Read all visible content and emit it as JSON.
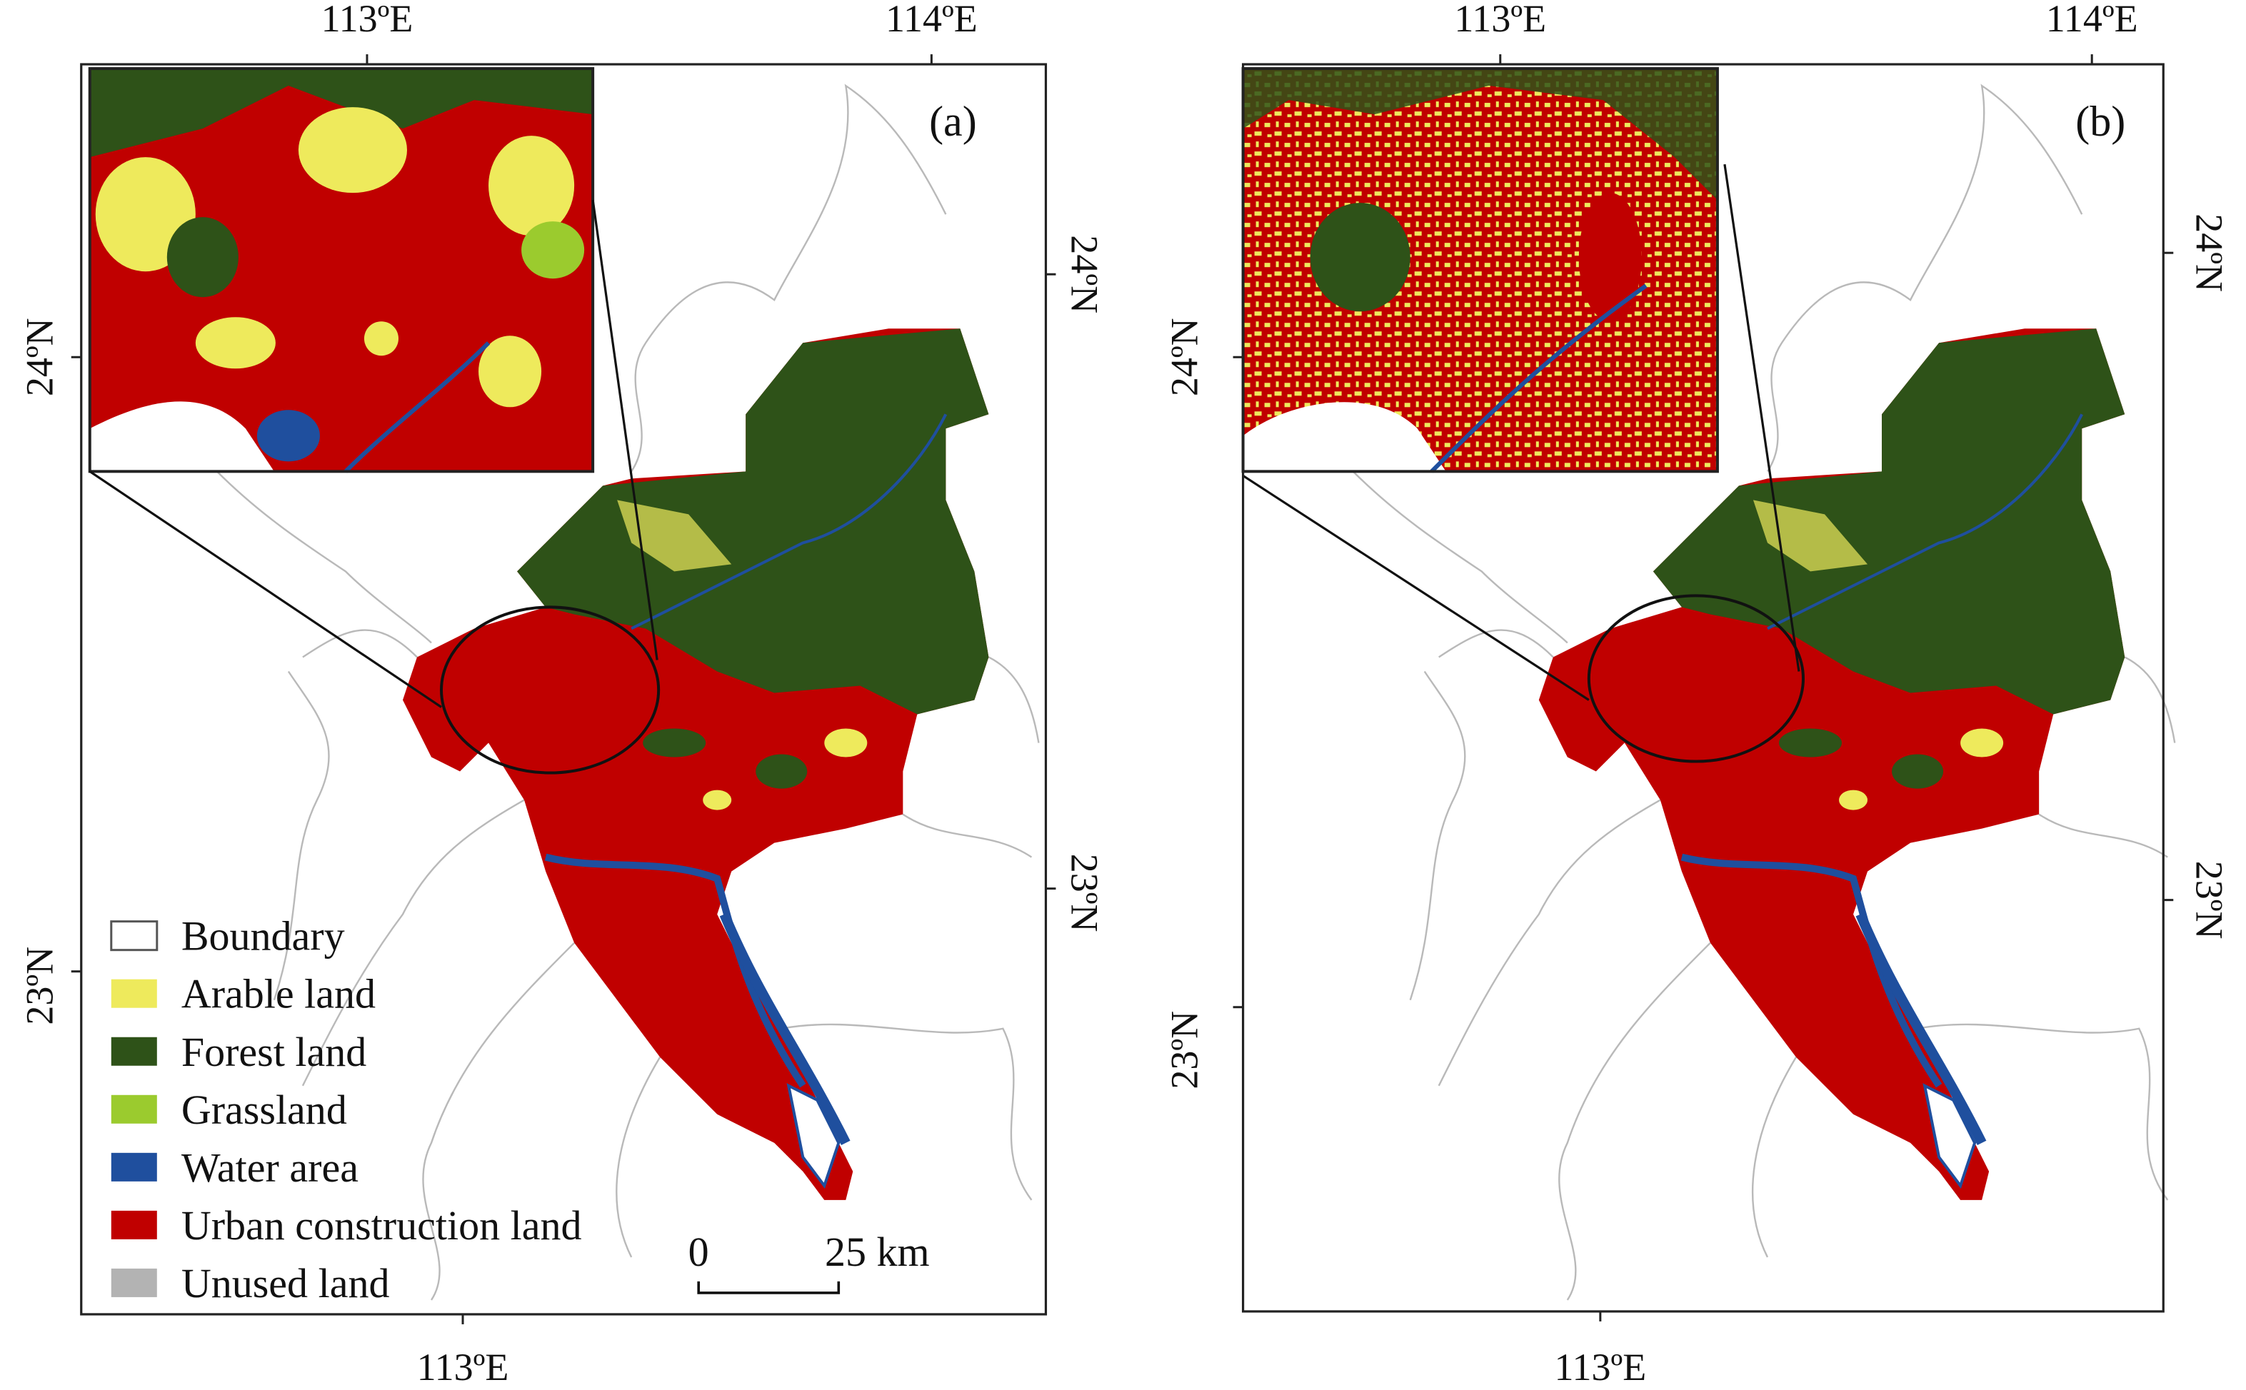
{
  "panels": [
    {
      "label": "(a)",
      "top_ticks": [
        "113ºE",
        "114ºE"
      ],
      "bottom_ticks": [
        "113ºE"
      ],
      "left_ticks": [
        "24ºN",
        "23ºN"
      ],
      "right_ticks": [
        "24ºN",
        "23ºN"
      ]
    },
    {
      "label": "(b)",
      "top_ticks": [
        "113ºE",
        "114ºE"
      ],
      "bottom_ticks": [
        "113ºE"
      ],
      "left_ticks": [
        "24ºN",
        "23ºN"
      ],
      "right_ticks": [
        "24ºN",
        "23ºN"
      ]
    }
  ],
  "legend": {
    "items": [
      {
        "label": "Boundary",
        "color": "#ffffff"
      },
      {
        "label": "Arable land",
        "color": "#eeea5c"
      },
      {
        "label": "Forest land",
        "color": "#2e5218"
      },
      {
        "label": "Grassland",
        "color": "#9bcb2e"
      },
      {
        "label": "Water area",
        "color": "#1f4f9e"
      },
      {
        "label": "Urban construction land",
        "color": "#c00000"
      },
      {
        "label": "Unused land",
        "color": "#b3b3b3"
      }
    ]
  },
  "scale_bar": {
    "start": "0",
    "end": "25 km"
  }
}
